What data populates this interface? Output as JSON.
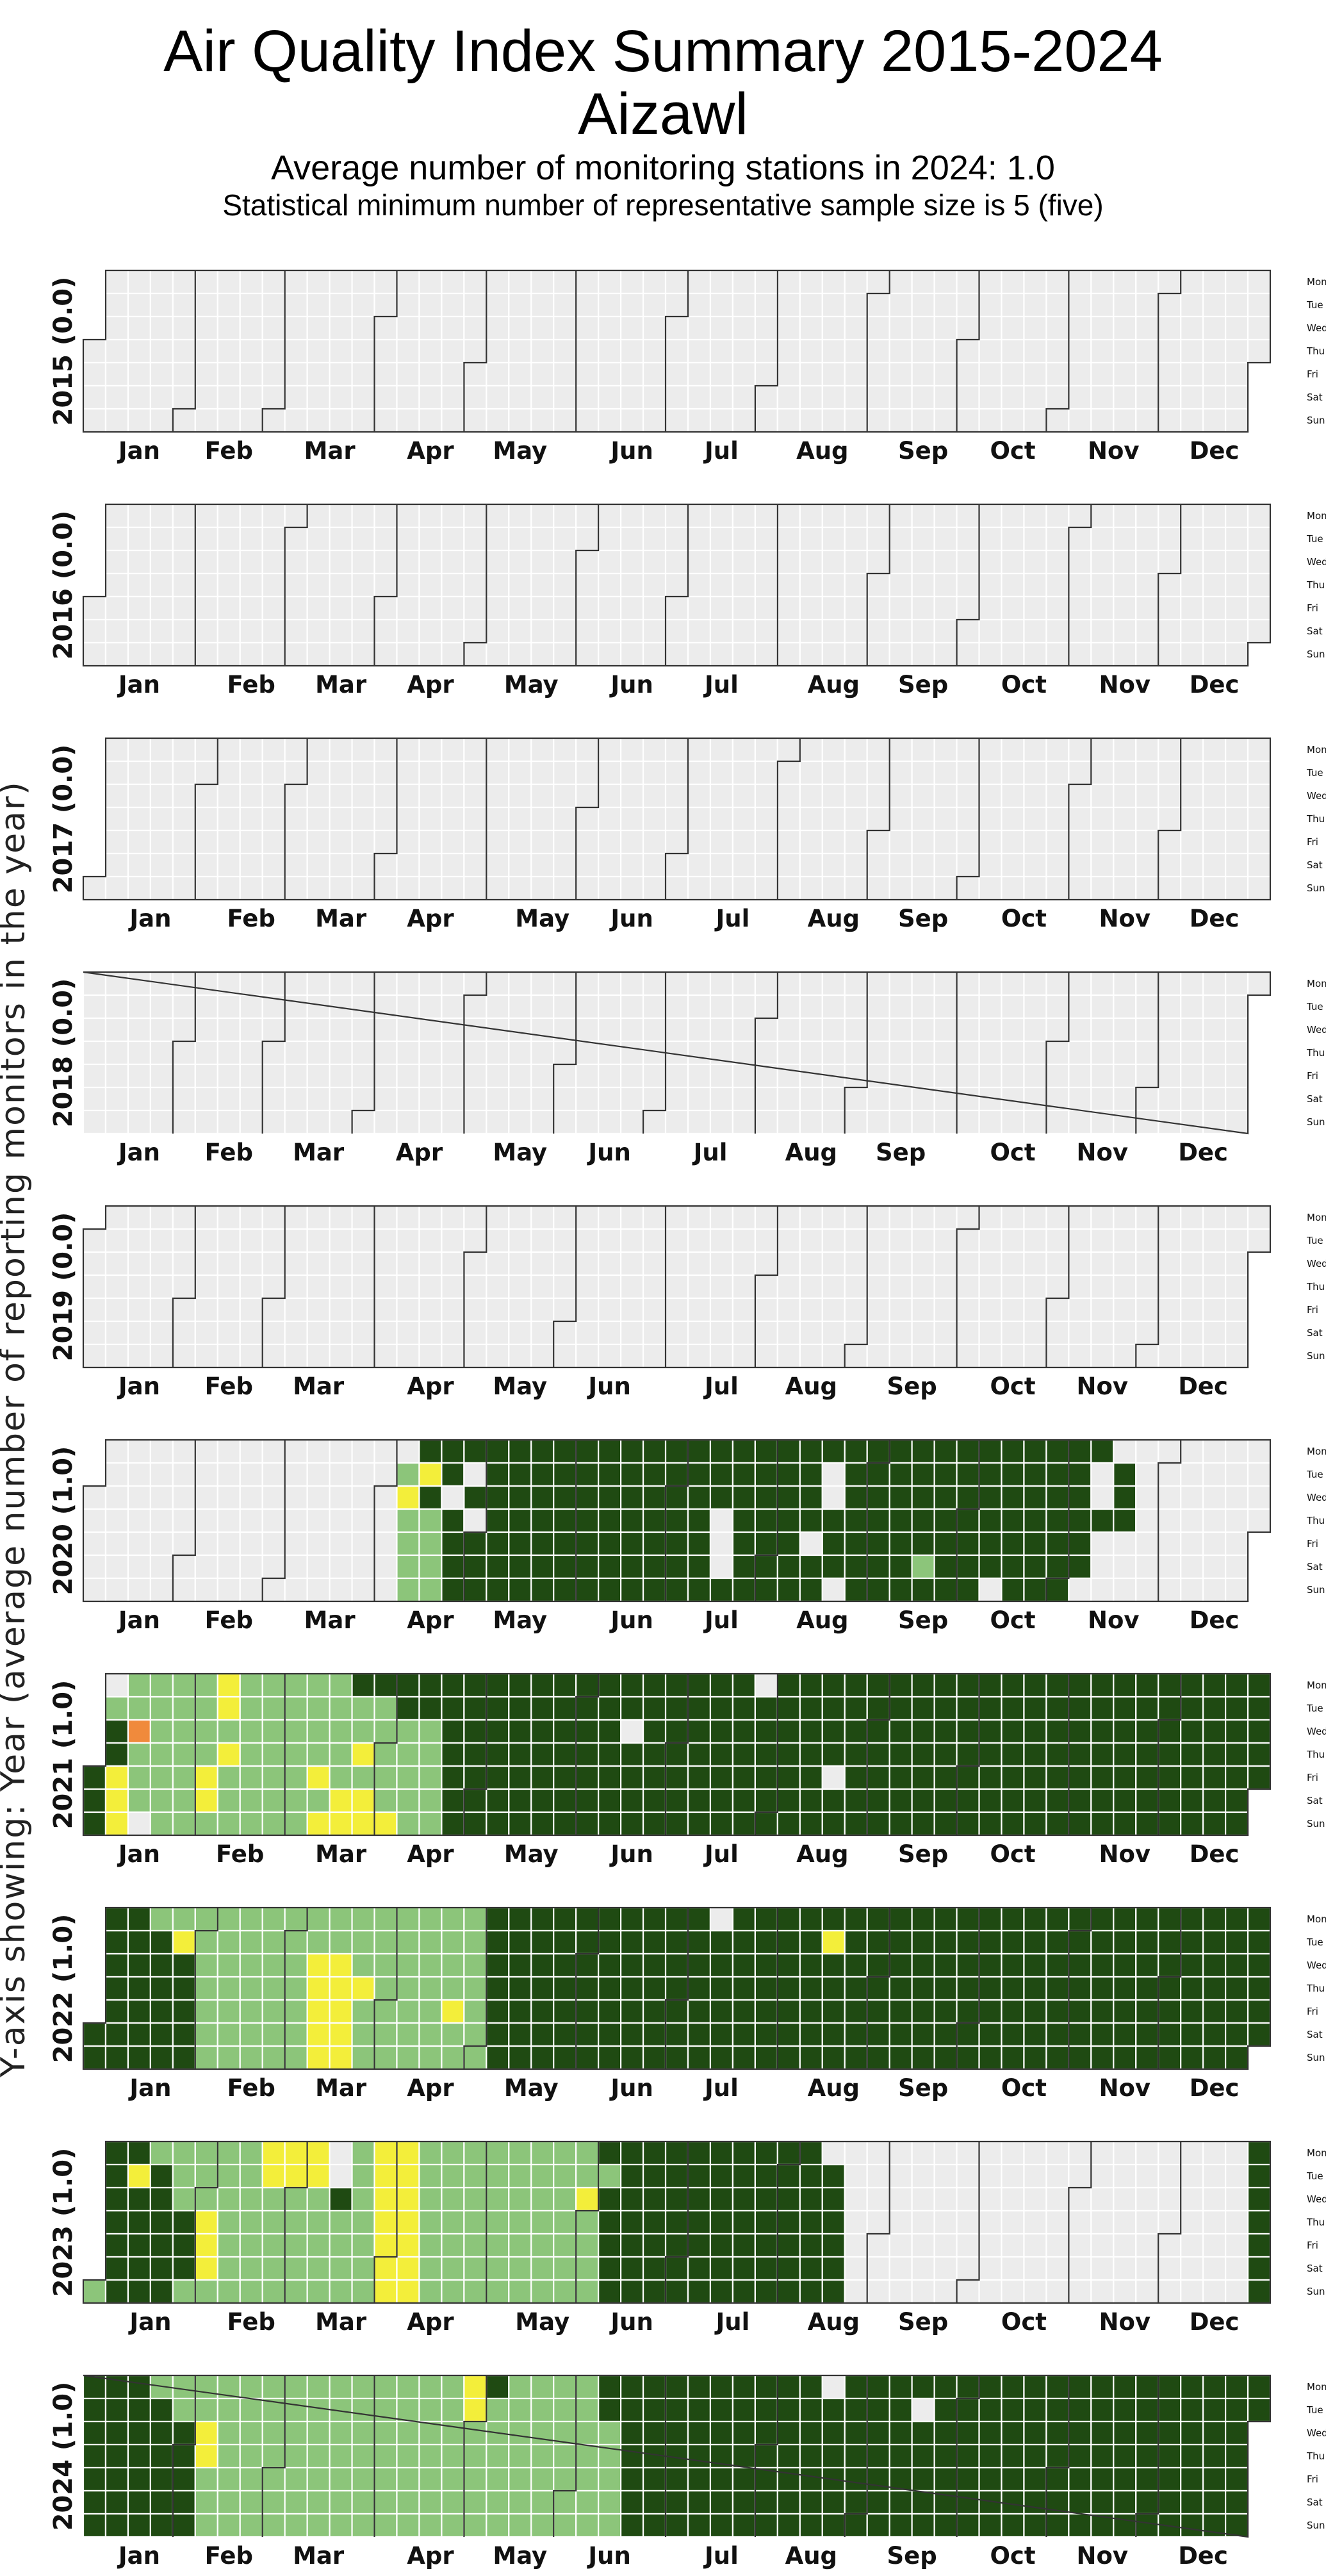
{
  "header": {
    "title": "Air Quality Index Summary 2015-2024",
    "city": "Aizawl",
    "subtitle1": "Average number of monitoring stations in 2024: 1.0",
    "subtitle2": "Statistical minimum number of representative sample size is 5 (five)"
  },
  "chart_data": {
    "type": "heatmap",
    "ylabel": "Y-axis showing: Year (average number of reporting monitors in the year)",
    "months": [
      "Jan",
      "Feb",
      "Mar",
      "Apr",
      "May",
      "Jun",
      "Jul",
      "Aug",
      "Sep",
      "Oct",
      "Nov",
      "Dec"
    ],
    "weekdays": [
      "Mon",
      "Tue",
      "Wed",
      "Thu",
      "Fri",
      "Sat",
      "Sun"
    ],
    "colors": {
      "nodata": "#ececec",
      "1": "#1f4a12",
      "2": "#8cc57a",
      "3": "#f3ee3a",
      "4": "#f08a3c"
    },
    "category_legend": "0 = no data, 1 = dark green, 2 = light green, 3 = yellow, 4 = orange",
    "years": [
      {
        "year": 2015,
        "label": "2015 (0.0)",
        "week_rows": [
          "",
          "",
          "",
          "",
          "",
          "",
          ""
        ]
      },
      {
        "year": 2016,
        "label": "2016 (0.0)",
        "week_rows": [
          "",
          "",
          "",
          "",
          "",
          "",
          ""
        ]
      },
      {
        "year": 2017,
        "label": "2017 (0.0)",
        "week_rows": [
          "",
          "",
          "",
          "",
          "",
          "",
          ""
        ]
      },
      {
        "year": 2018,
        "label": "2018 (0.0)",
        "week_rows": [
          "",
          "",
          "",
          "",
          "",
          "",
          ""
        ]
      },
      {
        "year": 2019,
        "label": "2019 (0.0)",
        "week_rows": [
          "",
          "",
          "",
          "",
          "",
          "",
          ""
        ]
      },
      {
        "year": 2020,
        "label": "2020 (1.0)",
        "week_rows": [
          "00000000000000011111111111111111111111111111110000000011111111",
          "00000000000000231011111111111111101111111111101000000011113111",
          "00000000000000310111111111111111101111111111101000000011113111",
          "00000000000000221011111111110111111111111111111000000011211111",
          "00000000000000221111111111110111011111111111100000000001211111",
          "00000000000000221111111111110111111112111111100000000001211111",
          "00000000000000221111111111111111101111110111000000000002211111"
        ]
      },
      {
        "year": 2021,
        "label": "2021 (1.0)",
        "week_rows": [
          "10222232222211111111111111111101111111111111111111111111111111",
          "12222232222222111111111111111111111111111111111111111111111111",
          "11422222222222221111111101111111111111111111111111111111111111",
          "11222232222232221111111111111111111111111111111111111111111111",
          "13222322223222221111111111111111101111111111111111111111111111",
          "13222322222332221111111111111111111111111111111111111111111111",
          "13022222223333221111111111111111111111111111111111111111111111"
        ]
      },
      {
        "year": 2022,
        "label": "2022 (1.0)",
        "week_rows": [
          "11122222222222222211111111110111111111111111111111111111111112",
          "11113222222222222211111111111111131111111111111111111111111112",
          "11111222223322222211111111111111111111111111111111111111111102",
          "11111222223332222211111111111111111111111111111111111111111132",
          "11111222223322223211111111111111111111111111111111111111111112",
          "11111222223322222211111111111111111111111111111111111111111112",
          "11111222223322222211111111111111111111111111111111111111111112"
        ]
      },
      {
        "year": 2023,
        "label": "2023 (1.0)",
        "week_rows": [
          "11122222333023322222222111111111100000000000000000001111111111",
          "11312222333023322222222211111111110000000000000000001111111111",
          "11112222222123322222223111111111110000000000000000001111111111",
          "11111322222223322222222111111111110000000000000000001111111111",
          "11111322222223322222222111111111110000000000000000001111111111",
          "11111322222223322222222111111111110000000000000000001111111111",
          "21112222222223322222222111111111110000000000000000001111111111"
        ]
      },
      {
        "year": 2024,
        "label": "2024 (1.0)",
        "week_rows": [
          "11122222222222222312222111111111101111111111111111111111111111",
          "11112222222222222322222111111111111110111111111111111111111111",
          "11111322222222222222222211111111111111111111111111111111111111",
          "11111322222222222222222211111111111111111111111111111111111111",
          "11111222222222222222222211111111111111111111111111111111111111",
          "11111222222222222222222211111111111111111111111111111111111111",
          "11111222222222222222222211111111111111111111111111111111111111"
        ]
      }
    ]
  }
}
